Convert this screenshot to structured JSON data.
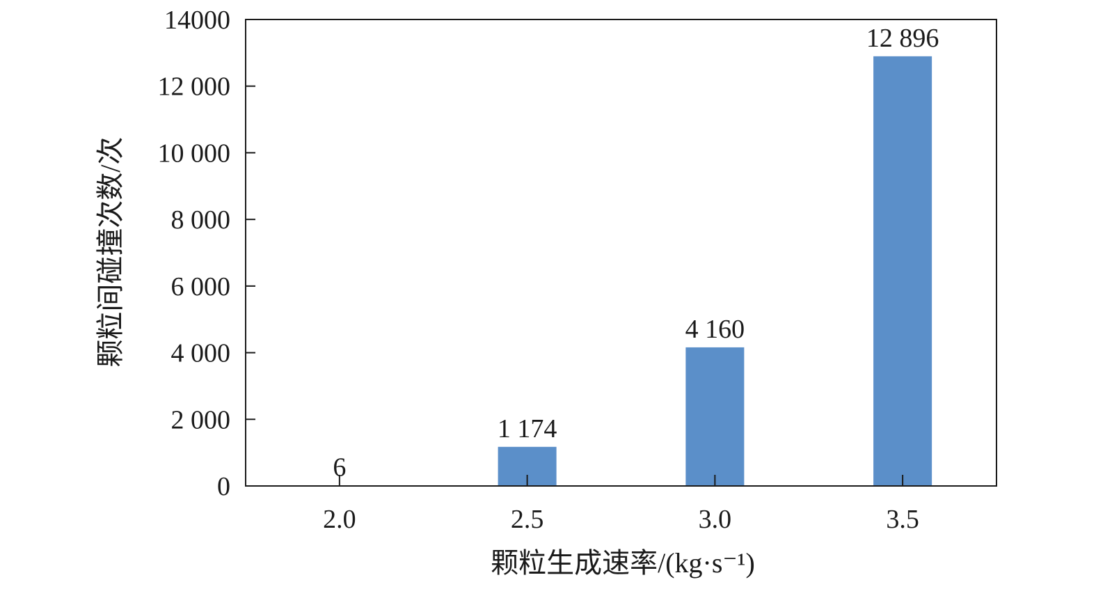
{
  "chart_data": {
    "type": "bar",
    "categories": [
      "2.0",
      "2.5",
      "3.0",
      "3.5"
    ],
    "values": [
      6,
      1174,
      4160,
      12896
    ],
    "value_labels": [
      "6",
      "1 174",
      "4 160",
      "12 896"
    ],
    "title": "",
    "xlabel": "颗粒生成速率/(kg·s⁻¹)",
    "ylabel": "颗粒间碰撞次数/次",
    "ylim": [
      0,
      14000
    ],
    "yticks": [
      0,
      2000,
      4000,
      6000,
      8000,
      10000,
      12000,
      14000
    ],
    "ytick_labels": [
      "0",
      "2 000",
      "4 000",
      "6 000",
      "8 000",
      "10 000",
      "12 000",
      "14000"
    ],
    "grid": false,
    "legend": "none",
    "bar_color": "#5b8fc9",
    "axis_color": "#1a1a1a"
  }
}
